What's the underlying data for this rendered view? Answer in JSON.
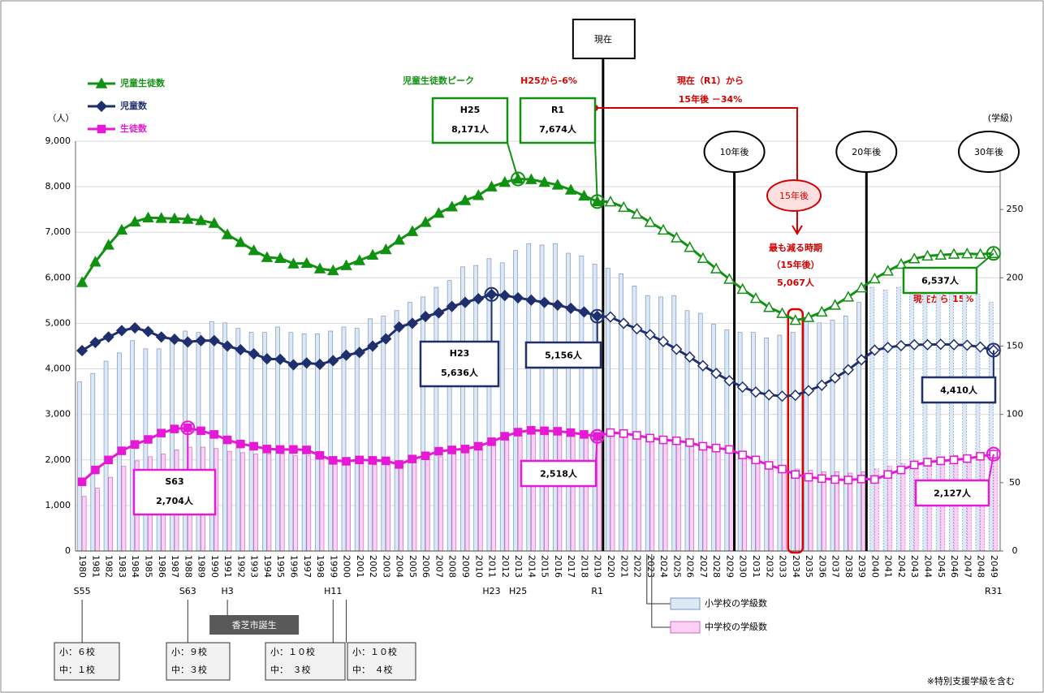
{
  "chart_data": {
    "type": "combo",
    "y_unit": "（人）",
    "y2_unit": "(学級)",
    "categories": [
      "1980",
      "1981",
      "1982",
      "1983",
      "1984",
      "1985",
      "1986",
      "1987",
      "1988",
      "1989",
      "1990",
      "1991",
      "1992",
      "1993",
      "1994",
      "1995",
      "1996",
      "1997",
      "1998",
      "1999",
      "2000",
      "2001",
      "2002",
      "2003",
      "2004",
      "2005",
      "2006",
      "2007",
      "2008",
      "2009",
      "2010",
      "2011",
      "2012",
      "2013",
      "2014",
      "2015",
      "2016",
      "2017",
      "2018",
      "2019",
      "2020",
      "2021",
      "2022",
      "2023",
      "2024",
      "2025",
      "2026",
      "2027",
      "2028",
      "2029",
      "2030",
      "2031",
      "2032",
      "2033",
      "2034",
      "2035",
      "2036",
      "2037",
      "2038",
      "2039",
      "2040",
      "2041",
      "2042",
      "2043",
      "2044",
      "2045",
      "2046",
      "2047",
      "2048",
      "2049"
    ],
    "ylim": [
      0,
      9000
    ],
    "yticks": [
      0,
      {
        "value": 1000,
        "label": "1,000"
      },
      {
        "value": 2000,
        "label": "2,000"
      },
      {
        "value": 3000,
        "label": "3,000"
      },
      {
        "value": 4000,
        "label": "4,000"
      },
      {
        "value": 5000,
        "label": "5,000"
      },
      {
        "value": 6000,
        "label": "6,000"
      },
      {
        "value": 7000,
        "label": "7,000"
      },
      {
        "value": 8000,
        "label": "8,000"
      },
      {
        "value": 9000,
        "label": "9,000"
      }
    ],
    "y2lim": [
      0,
      300
    ],
    "y2ticks": [
      0,
      50,
      100,
      150,
      200,
      250
    ],
    "grid": true,
    "projection_from": "2020",
    "series": [
      {
        "name": "小学校の学級数",
        "type": "bar",
        "axis": "y2",
        "color": "#dce8f5",
        "values": [
          124,
          130,
          139,
          145,
          154,
          148,
          148,
          154,
          161,
          160,
          168,
          167,
          163,
          160,
          160,
          164,
          160,
          159,
          159,
          161,
          164,
          163,
          170,
          172,
          176,
          182,
          186,
          193,
          198,
          208,
          209,
          214,
          211,
          220,
          225,
          224,
          225,
          218,
          216,
          210,
          207,
          203,
          194,
          187,
          186,
          187,
          176,
          174,
          166,
          162,
          160,
          160,
          156,
          158,
          160,
          169,
          167,
          169,
          172,
          182,
          193,
          191,
          193,
          191,
          193,
          193,
          191,
          191,
          188,
          182
        ]
      },
      {
        "name": "中学校の学級数",
        "type": "bar",
        "axis": "y2",
        "color": "#ffd0f5",
        "values": [
          40,
          46,
          54,
          62,
          66,
          69,
          71,
          74,
          76,
          76,
          75,
          73,
          72,
          71,
          71,
          71,
          70,
          70,
          68,
          65,
          64,
          64,
          63,
          63,
          63,
          65,
          67,
          69,
          71,
          73,
          75,
          78,
          82,
          85,
          87,
          87,
          86,
          85,
          84,
          83,
          86,
          86,
          84,
          82,
          80,
          80,
          78,
          76,
          74,
          72,
          70,
          67,
          64,
          62,
          60,
          59,
          58,
          58,
          57,
          58,
          60,
          62,
          64,
          66,
          68,
          69,
          70,
          70,
          71,
          72
        ]
      },
      {
        "name": "児童生徒数",
        "type": "line",
        "marker": "triangle",
        "color": "#119111",
        "values": [
          5900,
          6350,
          6720,
          7050,
          7230,
          7320,
          7310,
          7300,
          7290,
          7260,
          7200,
          6950,
          6780,
          6600,
          6450,
          6430,
          6310,
          6320,
          6200,
          6160,
          6270,
          6380,
          6500,
          6620,
          6830,
          7020,
          7220,
          7420,
          7560,
          7700,
          7810,
          8000,
          8100,
          8171,
          8160,
          8100,
          8040,
          7930,
          7800,
          7674,
          7670,
          7550,
          7400,
          7220,
          7050,
          6880,
          6670,
          6430,
          6200,
          5970,
          5750,
          5550,
          5350,
          5220,
          5067,
          5130,
          5250,
          5400,
          5580,
          5780,
          5980,
          6150,
          6300,
          6420,
          6480,
          6500,
          6520,
          6530,
          6520,
          6537
        ]
      },
      {
        "name": "児童数",
        "type": "line",
        "marker": "diamond",
        "color": "#1f2f6e",
        "values": [
          4400,
          4580,
          4700,
          4840,
          4900,
          4820,
          4700,
          4650,
          4590,
          4620,
          4620,
          4500,
          4420,
          4330,
          4220,
          4210,
          4090,
          4130,
          4100,
          4180,
          4300,
          4360,
          4500,
          4660,
          4920,
          5000,
          5150,
          5230,
          5370,
          5460,
          5540,
          5636,
          5610,
          5560,
          5510,
          5460,
          5400,
          5330,
          5250,
          5156,
          5140,
          5000,
          4880,
          4750,
          4600,
          4430,
          4260,
          4070,
          3900,
          3740,
          3600,
          3490,
          3430,
          3400,
          3420,
          3520,
          3640,
          3800,
          3980,
          4200,
          4410,
          4470,
          4510,
          4530,
          4530,
          4540,
          4530,
          4520,
          4480,
          4410
        ]
      },
      {
        "name": "生徒数",
        "type": "line",
        "marker": "square",
        "color": "#e619d6",
        "values": [
          1520,
          1780,
          2000,
          2200,
          2340,
          2450,
          2590,
          2680,
          2704,
          2640,
          2560,
          2440,
          2350,
          2300,
          2240,
          2230,
          2230,
          2220,
          2100,
          1990,
          1970,
          2000,
          1990,
          1980,
          1900,
          2020,
          2090,
          2190,
          2220,
          2240,
          2300,
          2400,
          2520,
          2610,
          2650,
          2640,
          2630,
          2600,
          2560,
          2518,
          2600,
          2580,
          2540,
          2480,
          2440,
          2420,
          2380,
          2300,
          2260,
          2230,
          2110,
          2000,
          1880,
          1800,
          1680,
          1620,
          1590,
          1570,
          1560,
          1580,
          1570,
          1680,
          1780,
          1890,
          1950,
          1980,
          2000,
          2030,
          2080,
          2127
        ]
      }
    ],
    "callouts": [
      {
        "series": 2,
        "category": "2013",
        "era": "H25",
        "label": "8,171人"
      },
      {
        "series": 2,
        "category": "2019",
        "era": "R1",
        "label": "7,674人"
      },
      {
        "series": 3,
        "category": "2011",
        "era": "H23",
        "label": "5,636人"
      },
      {
        "series": 3,
        "category": "2019",
        "label": "5,156人"
      },
      {
        "series": 4,
        "category": "1988",
        "era": "S63",
        "label": "2,704人"
      },
      {
        "series": 4,
        "category": "2019",
        "label": "2,518人"
      },
      {
        "series": 2,
        "category": "2049",
        "label": "6,537人"
      },
      {
        "series": 3,
        "category": "2049",
        "label": "4,410人"
      },
      {
        "series": 4,
        "category": "2049",
        "label": "2,127人"
      }
    ],
    "markers": [
      {
        "category": "2019",
        "label": "現在"
      },
      {
        "category": "2029",
        "label": "10年後"
      },
      {
        "category": "2039",
        "label": "20年後"
      },
      {
        "category": "2049",
        "label": "30年後"
      }
    ],
    "eras": [
      {
        "category": "1980",
        "label": "S55"
      },
      {
        "category": "1988",
        "label": "S63"
      },
      {
        "category": "1991",
        "label": "H3"
      },
      {
        "category": "1999",
        "label": "H11"
      },
      {
        "category": "2011",
        "label": "H23"
      },
      {
        "category": "2013",
        "label": "H25"
      },
      {
        "category": "2019",
        "label": "R1"
      },
      {
        "category": "2049",
        "label": "R31"
      }
    ],
    "schools": [
      {
        "category": "1980",
        "lines": [
          "小：６校",
          "中：１校"
        ]
      },
      {
        "category": "1988",
        "lines": [
          "小：９校",
          "中：３校"
        ]
      },
      {
        "category": "1999",
        "lines": [
          "小：１０校",
          "中：　３校"
        ]
      },
      {
        "category": "2000",
        "lines": [
          "小：１０校",
          "中：　４校"
        ]
      }
    ],
    "notes": {
      "peak": "児童生徒数ピーク",
      "peak_change": "H25から-6%",
      "now_from": "現在（R1）から",
      "now_change": "15年後 －34%",
      "min_circle": "15年後",
      "min_title": "最も減る時期",
      "min_sub": "（15年後）",
      "min_value": "5,067人",
      "end_change": "現在から-15%",
      "birth": "香芝市誕生",
      "footnote": "※特別支援学級を含む"
    }
  }
}
